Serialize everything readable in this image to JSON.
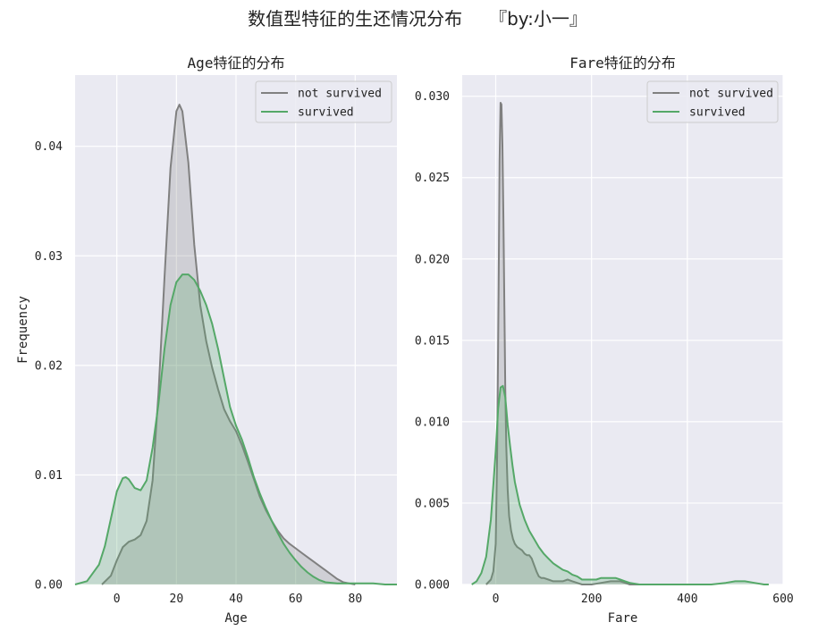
{
  "figure": {
    "suptitle": "数值型特征的生还情况分布　　『by:小一』"
  },
  "colors": {
    "plot_bg": "#eaeaf2",
    "grid": "#ffffff",
    "not_survived": "#808080",
    "survived": "#55a868"
  },
  "chart_data": [
    {
      "type": "area",
      "title": "Age特征的分布",
      "xlabel": "Age",
      "ylabel": "Frequency",
      "xlim": [
        -14,
        94
      ],
      "ylim": [
        0,
        0.0465
      ],
      "xticks": [
        0,
        20,
        40,
        60,
        80
      ],
      "yticks": [
        0.0,
        0.01,
        0.02,
        0.03,
        0.04
      ],
      "ytick_labels": [
        "0.00",
        "0.01",
        "0.02",
        "0.03",
        "0.04"
      ],
      "grid": true,
      "legend": "top-right",
      "series": [
        {
          "name": "not survived",
          "color": "#808080",
          "x": [
            -5,
            -2,
            0,
            2,
            4,
            6,
            8,
            10,
            12,
            14,
            16,
            18,
            20,
            21,
            22,
            24,
            26,
            28,
            30,
            32,
            34,
            36,
            38,
            40,
            42,
            44,
            46,
            48,
            50,
            52,
            54,
            56,
            58,
            60,
            62,
            64,
            66,
            68,
            70,
            72,
            74,
            76,
            78,
            80
          ],
          "y": [
            0.0,
            0.0008,
            0.0022,
            0.0034,
            0.0039,
            0.0041,
            0.0045,
            0.0058,
            0.0095,
            0.0175,
            0.028,
            0.038,
            0.0432,
            0.0438,
            0.0432,
            0.0385,
            0.031,
            0.0255,
            0.0222,
            0.0198,
            0.0178,
            0.016,
            0.0149,
            0.014,
            0.0127,
            0.0112,
            0.0096,
            0.008,
            0.0068,
            0.0058,
            0.0049,
            0.0042,
            0.0037,
            0.0033,
            0.0029,
            0.0025,
            0.0021,
            0.0017,
            0.0013,
            0.0009,
            0.0005,
            0.0002,
            0.0001,
            0.0
          ]
        },
        {
          "name": "survived",
          "color": "#55a868",
          "x": [
            -14,
            -10,
            -6,
            -4,
            -2,
            0,
            2,
            3,
            4,
            6,
            8,
            10,
            12,
            14,
            16,
            18,
            20,
            22,
            24,
            26,
            28,
            30,
            32,
            34,
            36,
            38,
            40,
            42,
            44,
            46,
            48,
            50,
            52,
            54,
            56,
            58,
            60,
            62,
            64,
            66,
            68,
            70,
            74,
            78,
            82,
            86,
            90,
            94
          ],
          "y": [
            0.0,
            0.0003,
            0.0018,
            0.0035,
            0.006,
            0.0085,
            0.0097,
            0.0098,
            0.0096,
            0.0088,
            0.0086,
            0.0095,
            0.0125,
            0.0165,
            0.0215,
            0.0255,
            0.0276,
            0.0283,
            0.0283,
            0.0278,
            0.0268,
            0.0255,
            0.0238,
            0.0215,
            0.0188,
            0.0162,
            0.0145,
            0.0132,
            0.0116,
            0.0098,
            0.0083,
            0.007,
            0.0058,
            0.0047,
            0.0037,
            0.0029,
            0.0022,
            0.0016,
            0.0011,
            0.0007,
            0.0004,
            0.0002,
            0.0001,
            0.0001,
            0.0001,
            0.0001,
            0.0,
            0.0
          ]
        }
      ]
    },
    {
      "type": "area",
      "title": "Fare特征的分布",
      "xlabel": "Fare",
      "ylabel": "",
      "xlim": [
        -70,
        600
      ],
      "ylim": [
        0,
        0.0313
      ],
      "xticks": [
        0,
        200,
        400,
        600
      ],
      "yticks": [
        0.0,
        0.005,
        0.01,
        0.015,
        0.02,
        0.025,
        0.03
      ],
      "ytick_labels": [
        "0.000",
        "0.005",
        "0.010",
        "0.015",
        "0.020",
        "0.025",
        "0.030"
      ],
      "grid": true,
      "legend": "top-right",
      "series": [
        {
          "name": "not survived",
          "color": "#808080",
          "x": [
            -20,
            -10,
            -5,
            0,
            3,
            6,
            8,
            10,
            12,
            14,
            16,
            18,
            20,
            22,
            25,
            28,
            32,
            36,
            40,
            45,
            50,
            55,
            60,
            65,
            70,
            75,
            80,
            85,
            90,
            95,
            100,
            110,
            120,
            130,
            140,
            150,
            160,
            170,
            180,
            200,
            220,
            240,
            260,
            270,
            280,
            290,
            300
          ],
          "y": [
            0.0,
            0.0003,
            0.0008,
            0.0025,
            0.008,
            0.018,
            0.026,
            0.0296,
            0.0295,
            0.027,
            0.0225,
            0.017,
            0.012,
            0.0085,
            0.0058,
            0.0042,
            0.0033,
            0.0028,
            0.0025,
            0.0023,
            0.0022,
            0.0021,
            0.0019,
            0.0018,
            0.0018,
            0.0016,
            0.0012,
            0.0008,
            0.0005,
            0.0004,
            0.0004,
            0.0003,
            0.0002,
            0.0002,
            0.0002,
            0.0003,
            0.0002,
            0.0001,
            0.0,
            0.0,
            0.0001,
            0.0002,
            0.0002,
            0.0001,
            0.0,
            0.0,
            0.0
          ]
        },
        {
          "name": "survived",
          "color": "#55a868",
          "x": [
            -50,
            -40,
            -30,
            -20,
            -10,
            0,
            5,
            10,
            15,
            20,
            25,
            30,
            35,
            40,
            50,
            60,
            70,
            80,
            90,
            100,
            110,
            120,
            130,
            140,
            150,
            160,
            170,
            180,
            190,
            200,
            210,
            220,
            230,
            240,
            250,
            260,
            270,
            280,
            300,
            350,
            400,
            450,
            480,
            500,
            510,
            520,
            540,
            560,
            570
          ],
          "y": [
            0.0,
            0.0002,
            0.0007,
            0.0017,
            0.004,
            0.0082,
            0.0108,
            0.0121,
            0.0122,
            0.0115,
            0.0098,
            0.0085,
            0.0073,
            0.0063,
            0.0049,
            0.004,
            0.0033,
            0.0028,
            0.0023,
            0.0019,
            0.0016,
            0.0013,
            0.0011,
            0.0009,
            0.0008,
            0.0006,
            0.0005,
            0.0003,
            0.0003,
            0.0003,
            0.0003,
            0.0004,
            0.0004,
            0.0004,
            0.0004,
            0.0003,
            0.0002,
            0.0001,
            0.0,
            0.0,
            0.0,
            0.0,
            0.0001,
            0.0002,
            0.0002,
            0.0002,
            0.0001,
            0.0,
            0.0
          ]
        }
      ]
    }
  ]
}
